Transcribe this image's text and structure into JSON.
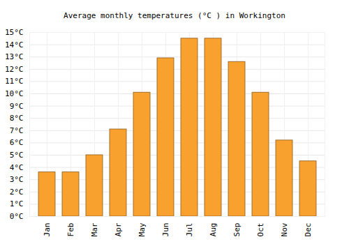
{
  "chart_data": {
    "type": "bar",
    "title": "Average monthly temperatures (°C ) in Workington",
    "categories": [
      "Jan",
      "Feb",
      "Mar",
      "Apr",
      "May",
      "Jun",
      "Jul",
      "Aug",
      "Sep",
      "Oct",
      "Nov",
      "Dec"
    ],
    "values": [
      3.6,
      3.6,
      5.0,
      7.1,
      10.1,
      12.9,
      14.5,
      14.5,
      12.6,
      10.1,
      6.2,
      4.5
    ],
    "color": "#f9a12e",
    "ylim": [
      0,
      15
    ],
    "yticks": [
      {
        "value": 0,
        "label": "0°C"
      },
      {
        "value": 1,
        "label": "1°C"
      },
      {
        "value": 2,
        "label": "2°C"
      },
      {
        "value": 3,
        "label": "3°C"
      },
      {
        "value": 4,
        "label": "4°C"
      },
      {
        "value": 5,
        "label": "5°C"
      },
      {
        "value": 6,
        "label": "6°C"
      },
      {
        "value": 7,
        "label": "7°C"
      },
      {
        "value": 8,
        "label": "8°C"
      },
      {
        "value": 9,
        "label": "9°C"
      },
      {
        "value": 10,
        "label": "10°C"
      },
      {
        "value": 11,
        "label": "11°C"
      },
      {
        "value": 12,
        "label": "12°C"
      },
      {
        "value": 13,
        "label": "13°C"
      },
      {
        "value": 14,
        "label": "14°C"
      },
      {
        "value": 15,
        "label": "15°C"
      }
    ],
    "grid": true
  }
}
